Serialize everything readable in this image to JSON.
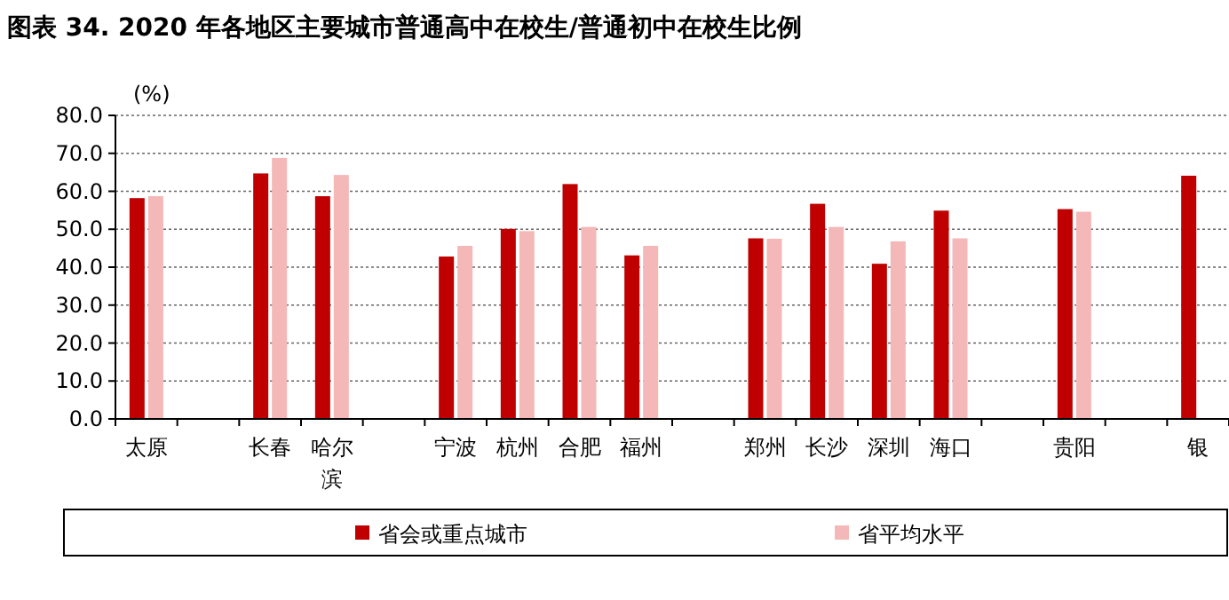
{
  "chart_data": {
    "type": "bar",
    "title": "图表 34. 2020 年各地区主要城市普通高中在校生/普通初中在校生比例",
    "ylabel": "(%)",
    "categories": [
      "太原",
      null,
      "长春",
      "哈尔滨",
      null,
      "宁波",
      "杭州",
      "合肥",
      "福州",
      null,
      "郑州",
      "长沙",
      "深圳",
      "海口",
      null,
      "贵阳",
      null,
      "银"
    ],
    "series": [
      {
        "name": "省会或重点城市",
        "color": "#c00000",
        "values": [
          58.2,
          null,
          64.7,
          58.7,
          null,
          42.8,
          50.1,
          61.9,
          43.1,
          null,
          47.6,
          56.7,
          40.9,
          54.9,
          null,
          55.3,
          null,
          64.1
        ]
      },
      {
        "name": "省平均水平",
        "color": "#f4b8b8",
        "values": [
          58.7,
          null,
          68.8,
          64.3,
          null,
          45.6,
          49.5,
          50.6,
          45.6,
          null,
          47.5,
          50.6,
          46.8,
          47.6,
          null,
          54.6,
          null,
          null
        ]
      }
    ],
    "ylim": [
      0,
      80
    ],
    "yticks": [
      {
        "value": 0,
        "label": "0.0"
      },
      {
        "value": 10,
        "label": "10.0"
      },
      {
        "value": 20,
        "label": "20.0"
      },
      {
        "value": 30,
        "label": "30.0"
      },
      {
        "value": 40,
        "label": "40.0"
      },
      {
        "value": 50,
        "label": "50.0"
      },
      {
        "value": 60,
        "label": "60.0"
      },
      {
        "value": 70,
        "label": "70.0"
      },
      {
        "value": 80,
        "label": "80.0"
      }
    ],
    "grid": "y",
    "legend": "bottom"
  }
}
